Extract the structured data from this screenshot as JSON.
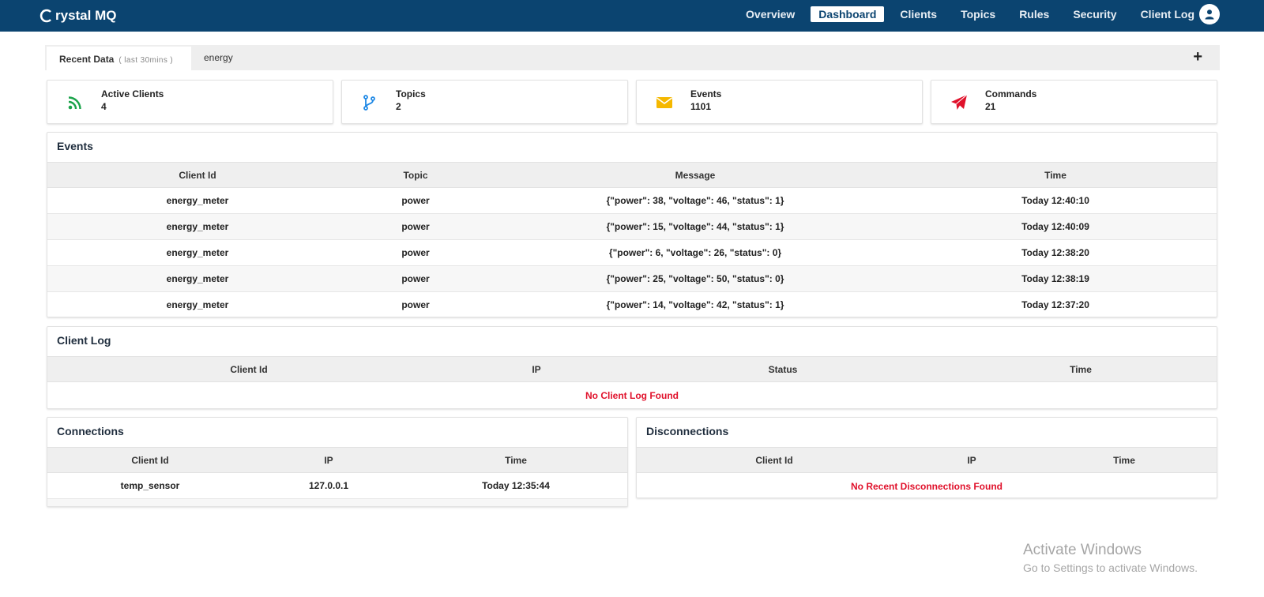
{
  "app": {
    "brand": "rystal MQ",
    "brand_initial": "C"
  },
  "nav": {
    "items": [
      "Overview",
      "Dashboard",
      "Clients",
      "Topics",
      "Rules",
      "Security",
      "Client Log"
    ],
    "active": "Dashboard"
  },
  "tabs": {
    "recent_label": "Recent Data",
    "recent_hint": "( last 30mins )",
    "second_label": "energy",
    "add_label": "+"
  },
  "stats": [
    {
      "label": "Active Clients",
      "value": "4",
      "icon": "rss-icon",
      "color": "#1aa34a"
    },
    {
      "label": "Topics",
      "value": "2",
      "icon": "branch-icon",
      "color": "#1e88e5"
    },
    {
      "label": "Events",
      "value": "1101",
      "icon": "envelope-icon",
      "color": "#f5b800"
    },
    {
      "label": "Commands",
      "value": "21",
      "icon": "paper-plane-icon",
      "color": "#e0112b"
    }
  ],
  "events": {
    "title": "Events",
    "columns": [
      "Client Id",
      "Topic",
      "Message",
      "Time"
    ],
    "rows": [
      [
        "energy_meter",
        "power",
        "{\"power\": 38, \"voltage\": 46, \"status\": 1}",
        "Today 12:40:10"
      ],
      [
        "energy_meter",
        "power",
        "{\"power\": 15, \"voltage\": 44, \"status\": 1}",
        "Today 12:40:09"
      ],
      [
        "energy_meter",
        "power",
        "{\"power\": 6, \"voltage\": 26, \"status\": 0}",
        "Today 12:38:20"
      ],
      [
        "energy_meter",
        "power",
        "{\"power\": 25, \"voltage\": 50, \"status\": 0}",
        "Today 12:38:19"
      ],
      [
        "energy_meter",
        "power",
        "{\"power\": 14, \"voltage\": 42, \"status\": 1}",
        "Today 12:37:20"
      ]
    ]
  },
  "client_log": {
    "title": "Client Log",
    "columns": [
      "Client Id",
      "IP",
      "Status",
      "Time"
    ],
    "empty_text": "No Client Log Found"
  },
  "connections": {
    "title": "Connections",
    "columns": [
      "Client Id",
      "IP",
      "Time"
    ],
    "rows": [
      [
        "temp_sensor",
        "127.0.0.1",
        "Today 12:35:44"
      ]
    ]
  },
  "disconnections": {
    "title": "Disconnections",
    "columns": [
      "Client Id",
      "IP",
      "Time"
    ],
    "empty_text": "No Recent Disconnections Found"
  },
  "watermark": {
    "line1": "Activate Windows",
    "line2": "Go to Settings to activate Windows."
  },
  "colors": {
    "topbar": "#0b4470",
    "empty_text": "#e0112b"
  }
}
